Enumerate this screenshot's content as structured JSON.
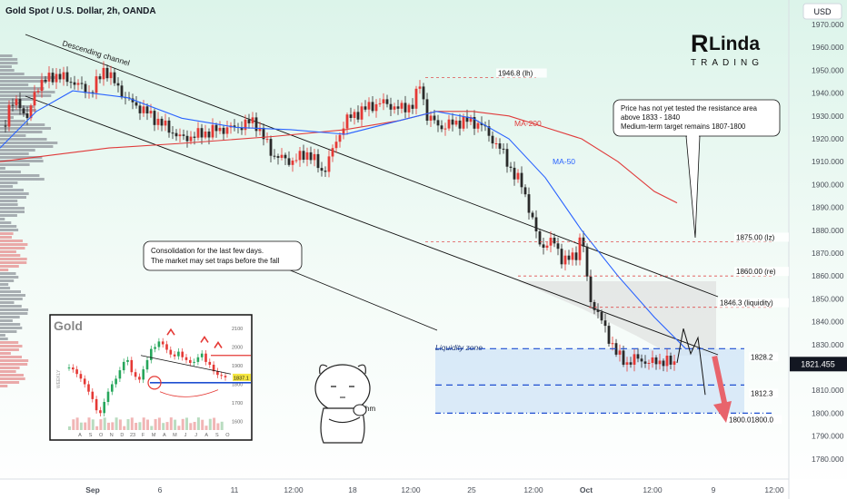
{
  "header": {
    "title": "Gold Spot / U.S. Dollar, 2h, OANDA",
    "currency_button": "USD"
  },
  "logo": {
    "line1": "Linda",
    "line2": "TRADING"
  },
  "colors": {
    "bg_top": "#e1f5ec",
    "bull": "#e53935",
    "bear": "#2a2a2a",
    "ma50": "#2962ff",
    "ma200": "#e03a3a",
    "dash_red": "#e05050",
    "dash_blue": "#1f4fd1",
    "zone_fill": "#cfe3f7",
    "gray_fill": "#d8d8d8"
  },
  "chart_data": {
    "type": "candlestick",
    "title": "Gold Spot / U.S. Dollar, 2h, OANDA",
    "x_tick_labels": [
      "Sep",
      "6",
      "11",
      "12:00",
      "18",
      "12:00",
      "25",
      "12:00",
      "Oct",
      "12:00",
      "9",
      "12:00"
    ],
    "y_ticks": [
      1780,
      1790,
      1800,
      1810,
      1820,
      1830,
      1840,
      1850,
      1860,
      1870,
      1880,
      1890,
      1900,
      1910,
      1920,
      1930,
      1940,
      1950,
      1960,
      1970
    ],
    "y_tick_labels": [
      "1780.000",
      "1790.000",
      "1800.000",
      "1810.000",
      "1820.000",
      "1830.000",
      "1840.000",
      "1850.000",
      "1860.000",
      "1870.000",
      "1880.000",
      "1890.000",
      "1900.000",
      "1910.000",
      "1920.000",
      "1930.000",
      "1940.000",
      "1950.000",
      "1960.000",
      "1970.000"
    ],
    "ylim": [
      1775,
      1975
    ],
    "current_price": {
      "label": "1821.455",
      "value": 1821.455
    },
    "close_path": [
      [
        0,
        1921
      ],
      [
        10,
        1933
      ],
      [
        20,
        1937
      ],
      [
        30,
        1928
      ],
      [
        40,
        1943
      ],
      [
        60,
        1948
      ],
      [
        80,
        1945
      ],
      [
        100,
        1940
      ],
      [
        115,
        1951
      ],
      [
        125,
        1945
      ],
      [
        140,
        1937
      ],
      [
        160,
        1932
      ],
      [
        180,
        1926
      ],
      [
        200,
        1920
      ],
      [
        220,
        1922
      ],
      [
        240,
        1924
      ],
      [
        260,
        1925
      ],
      [
        280,
        1928
      ],
      [
        300,
        1913
      ],
      [
        320,
        1910
      ],
      [
        340,
        1914
      ],
      [
        355,
        1905
      ],
      [
        365,
        1914
      ],
      [
        380,
        1928
      ],
      [
        400,
        1933
      ],
      [
        420,
        1936
      ],
      [
        440,
        1933
      ],
      [
        455,
        1935
      ],
      [
        462,
        1944
      ],
      [
        470,
        1930
      ],
      [
        485,
        1925
      ],
      [
        500,
        1927
      ],
      [
        515,
        1928
      ],
      [
        530,
        1926
      ],
      [
        545,
        1918
      ],
      [
        555,
        1913
      ],
      [
        565,
        1904
      ],
      [
        575,
        1900
      ],
      [
        585,
        1885
      ],
      [
        595,
        1873
      ],
      [
        610,
        1875
      ],
      [
        620,
        1866
      ],
      [
        635,
        1870
      ],
      [
        640,
        1880
      ],
      [
        648,
        1851
      ],
      [
        660,
        1842
      ],
      [
        670,
        1833
      ],
      [
        680,
        1825
      ],
      [
        690,
        1822
      ],
      [
        700,
        1824
      ],
      [
        715,
        1822
      ],
      [
        730,
        1823
      ],
      [
        745,
        1821
      ]
    ],
    "ma50_path": [
      [
        0,
        1916
      ],
      [
        40,
        1932
      ],
      [
        80,
        1941
      ],
      [
        140,
        1938
      ],
      [
        200,
        1929
      ],
      [
        260,
        1925
      ],
      [
        320,
        1924
      ],
      [
        380,
        1922
      ],
      [
        440,
        1928
      ],
      [
        480,
        1932
      ],
      [
        520,
        1929
      ],
      [
        560,
        1920
      ],
      [
        600,
        1903
      ],
      [
        640,
        1880
      ],
      [
        680,
        1860
      ],
      [
        720,
        1842
      ],
      [
        755,
        1828
      ]
    ],
    "ma200_path": [
      [
        0,
        1910
      ],
      [
        60,
        1913
      ],
      [
        120,
        1916
      ],
      [
        200,
        1918
      ],
      [
        300,
        1921
      ],
      [
        380,
        1924
      ],
      [
        440,
        1928
      ],
      [
        480,
        1932
      ],
      [
        520,
        1932
      ],
      [
        560,
        1930
      ],
      [
        600,
        1925
      ],
      [
        640,
        1920
      ],
      [
        680,
        1910
      ],
      [
        720,
        1897
      ],
      [
        745,
        1892
      ]
    ],
    "projection_path": [
      [
        745,
        1822
      ],
      [
        752,
        1837
      ],
      [
        760,
        1826
      ],
      [
        768,
        1833
      ],
      [
        776,
        1808
      ]
    ],
    "levels": [
      {
        "label": "1946.8 (lh)",
        "value": 1946.8
      },
      {
        "label": "1875.00 (lz)",
        "value": 1875.0
      },
      {
        "label": "1860.00 (re)",
        "value": 1860.0
      },
      {
        "label": "1846.3 (liquidity)",
        "value": 1846.3
      },
      {
        "label": "1828.2",
        "value": 1828.2
      },
      {
        "label": "1812.3",
        "value": 1812.3
      },
      {
        "label": "1800.01800.0",
        "value": 1800.0
      }
    ],
    "annotations": {
      "channel": "Descending channel",
      "ma200": "MA-200",
      "ma50": "MA-50",
      "liquidity_zone": "Liquidity zone",
      "consolidation_1": "Consolidation for the last few days.",
      "consolidation_2": "The market may set traps before the fall",
      "note_1": "Price has not yet tested the resistance area",
      "note_2": "above 1833 - 1840",
      "note_3": "Medium-term target remains 1807-1800"
    }
  },
  "inset": {
    "title": "Gold",
    "side_label": "WEEKLY",
    "price_labels": [
      "2100",
      "2000",
      "1900",
      "1800",
      "1700",
      "1600"
    ],
    "price_tag": "1837.1",
    "month_labels": [
      "A",
      "S",
      "O",
      "N",
      "D",
      "23",
      "F",
      "M",
      "A",
      "M",
      "J",
      "J",
      "A",
      "S",
      "O"
    ],
    "series": [
      1890,
      1880,
      1855,
      1830,
      1800,
      1760,
      1720,
      1660,
      1645,
      1705,
      1760,
      1800,
      1830,
      1875,
      1920,
      1930,
      1865,
      1840,
      1825,
      1880,
      1930,
      1990,
      2000,
      2030,
      2015,
      1985,
      1960,
      1950,
      1975,
      1945,
      1930,
      1915,
      1920,
      1945,
      1965,
      1920,
      1905,
      1870,
      1850,
      1845,
      1837
    ]
  },
  "mascot": {
    "caption": "hm"
  }
}
